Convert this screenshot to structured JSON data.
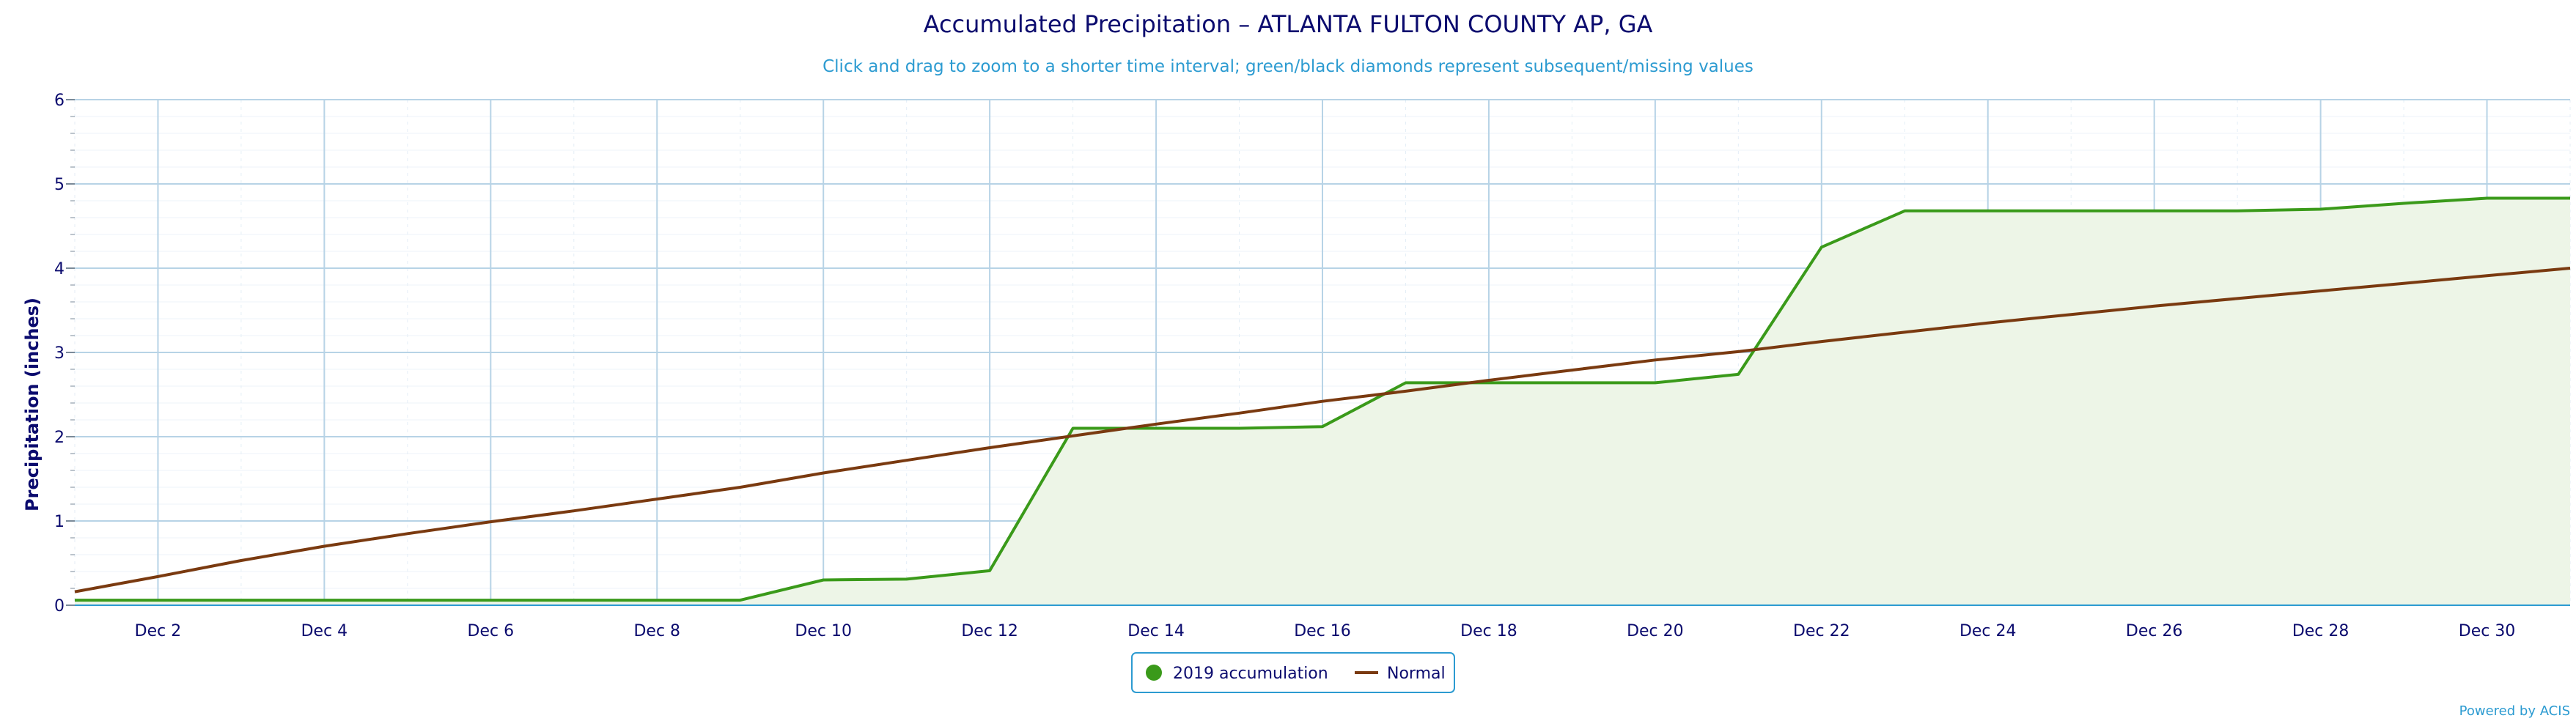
{
  "chart_data": {
    "type": "line",
    "title": "Accumulated Precipitation – ATLANTA FULTON COUNTY AP, GA",
    "subtitle": "Click and drag to zoom to a shorter time interval; green/black diamonds represent subsequent/missing values",
    "ylabel": "Precipitation (inches)",
    "xlabel": "",
    "ylim": [
      0,
      6
    ],
    "xlim": [
      1,
      31
    ],
    "yticks": [
      0,
      1,
      2,
      3,
      4,
      5,
      6
    ],
    "xticks": [
      {
        "day": 2,
        "label": "Dec 2"
      },
      {
        "day": 4,
        "label": "Dec 4"
      },
      {
        "day": 6,
        "label": "Dec 6"
      },
      {
        "day": 8,
        "label": "Dec 8"
      },
      {
        "day": 10,
        "label": "Dec 10"
      },
      {
        "day": 12,
        "label": "Dec 12"
      },
      {
        "day": 14,
        "label": "Dec 14"
      },
      {
        "day": 16,
        "label": "Dec 16"
      },
      {
        "day": 18,
        "label": "Dec 18"
      },
      {
        "day": 20,
        "label": "Dec 20"
      },
      {
        "day": 22,
        "label": "Dec 22"
      },
      {
        "day": 24,
        "label": "Dec 24"
      },
      {
        "day": 26,
        "label": "Dec 26"
      },
      {
        "day": 28,
        "label": "Dec 28"
      },
      {
        "day": 30,
        "label": "Dec 30"
      }
    ],
    "grid": true,
    "legend_position": "bottom-center",
    "series": [
      {
        "name": "2019 accumulation",
        "color": "#3a9a1a",
        "fill": "#edf5e7",
        "style": "area",
        "x": [
          1,
          2,
          3,
          4,
          5,
          6,
          7,
          8,
          9,
          10,
          11,
          12,
          13,
          14,
          15,
          16,
          17,
          18,
          19,
          20,
          21,
          22,
          23,
          24,
          25,
          26,
          27,
          28,
          29,
          30,
          31
        ],
        "values": [
          0.06,
          0.06,
          0.06,
          0.06,
          0.06,
          0.06,
          0.06,
          0.06,
          0.06,
          0.3,
          0.31,
          0.41,
          2.1,
          2.1,
          2.1,
          2.12,
          2.64,
          2.64,
          2.64,
          2.64,
          2.74,
          4.25,
          4.68,
          4.68,
          4.68,
          4.68,
          4.68,
          4.7,
          4.77,
          4.83,
          4.83
        ]
      },
      {
        "name": "Normal",
        "color": "#7a3a10",
        "style": "line",
        "x": [
          1,
          2,
          3,
          4,
          5,
          6,
          7,
          8,
          9,
          10,
          11,
          12,
          13,
          14,
          15,
          16,
          17,
          18,
          19,
          20,
          21,
          22,
          23,
          24,
          25,
          26,
          27,
          28,
          29,
          30,
          31
        ],
        "values": [
          0.16,
          0.34,
          0.53,
          0.7,
          0.85,
          0.99,
          1.12,
          1.26,
          1.4,
          1.57,
          1.72,
          1.87,
          2.01,
          2.15,
          2.28,
          2.42,
          2.54,
          2.67,
          2.79,
          2.91,
          3.01,
          3.13,
          3.24,
          3.35,
          3.45,
          3.55,
          3.64,
          3.73,
          3.82,
          3.91,
          4.0
        ]
      }
    ]
  },
  "credit": "Powered by ACIS"
}
